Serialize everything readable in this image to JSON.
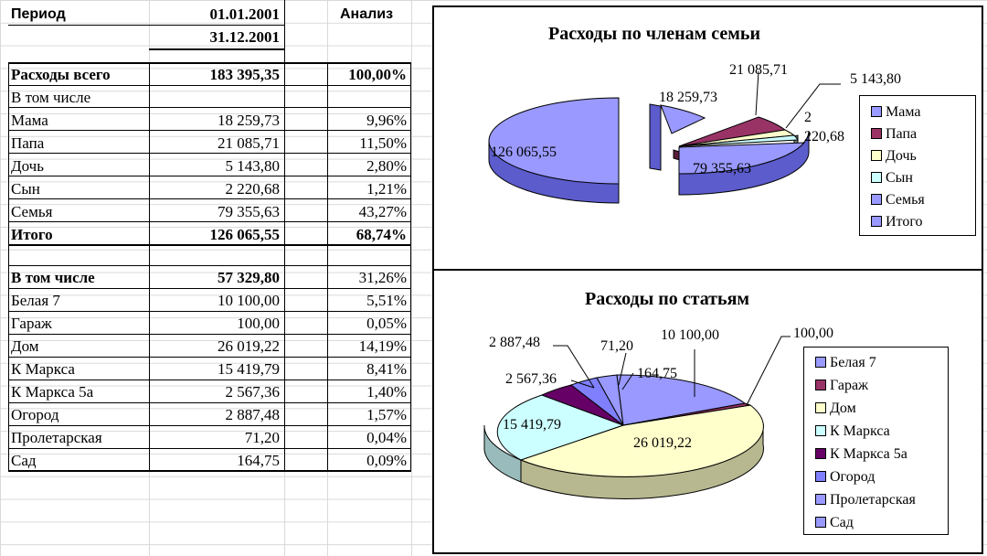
{
  "header": {
    "period_label": "Период",
    "date_from": "01.01.2001",
    "date_to": "31.12.2001",
    "analysis_label": "Анализ"
  },
  "total": {
    "label": "Расходы всего",
    "value": "183 395,35",
    "pct": "100,00%"
  },
  "family": {
    "sub_label": "В том числе",
    "rows": [
      {
        "label": "Мама",
        "value": "18 259,73",
        "pct": "9,96%"
      },
      {
        "label": "Папа",
        "value": "21 085,71",
        "pct": "11,50%"
      },
      {
        "label": "Дочь",
        "value": "5 143,80",
        "pct": "2,80%"
      },
      {
        "label": "Сын",
        "value": "2 220,68",
        "pct": "1,21%"
      },
      {
        "label": "Семья",
        "value": "79 355,63",
        "pct": "43,27%"
      }
    ],
    "total": {
      "label": "Итого",
      "value": "126 065,55",
      "pct": "68,74%"
    }
  },
  "items": {
    "header": {
      "label": "В том числе",
      "value": "57 329,80",
      "pct": "31,26%"
    },
    "rows": [
      {
        "label": "Белая 7",
        "value": "10 100,00",
        "pct": "5,51%"
      },
      {
        "label": "Гараж",
        "value": "100,00",
        "pct": "0,05%"
      },
      {
        "label": "Дом",
        "value": "26 019,22",
        "pct": "14,19%"
      },
      {
        "label": "К Маркса",
        "value": "15 419,79",
        "pct": "8,41%"
      },
      {
        "label": "К Маркса 5а",
        "value": "2 567,36",
        "pct": "1,40%"
      },
      {
        "label": "Огород",
        "value": "2 887,48",
        "pct": "1,57%"
      },
      {
        "label": "Пролетарская",
        "value": "71,20",
        "pct": "0,04%"
      },
      {
        "label": "Сад",
        "value": "164,75",
        "pct": "0,09%"
      }
    ]
  },
  "chart_data": [
    {
      "type": "pie",
      "title": "Расходы по членам семьи",
      "legend_position": "right",
      "categories": [
        "Мама",
        "Папа",
        "Дочь",
        "Сын",
        "Семья",
        "Итого"
      ],
      "values": [
        18259.73,
        21085.71,
        5143.8,
        2220.68,
        79355.63,
        126065.55
      ],
      "data_labels": [
        "18 259,73",
        "21 085,71",
        "5 143,80",
        "2 220,68",
        "79 355,63",
        "126 065,55"
      ],
      "colors": [
        "#9999ff",
        "#993366",
        "#ffffcc",
        "#ccffff",
        "#9999ff",
        "#9999ff"
      ]
    },
    {
      "type": "pie",
      "title": "Расходы по статьям",
      "legend_position": "right",
      "categories": [
        "Белая 7",
        "Гараж",
        "Дом",
        "К Маркса",
        "К Маркса 5а",
        "Огород",
        "Пролетарская",
        "Сад"
      ],
      "values": [
        10100.0,
        100.0,
        26019.22,
        15419.79,
        2567.36,
        2887.48,
        71.2,
        164.75
      ],
      "data_labels": [
        "10 100,00",
        "100,00",
        "26 019,22",
        "15 419,79",
        "2 567,36",
        "2 887,48",
        "71,20",
        "164,75"
      ],
      "colors": [
        "#9999ff",
        "#993366",
        "#ffffcc",
        "#ccffff",
        "#660066",
        "#8080ff",
        "#9999ff",
        "#9999ff"
      ]
    }
  ]
}
